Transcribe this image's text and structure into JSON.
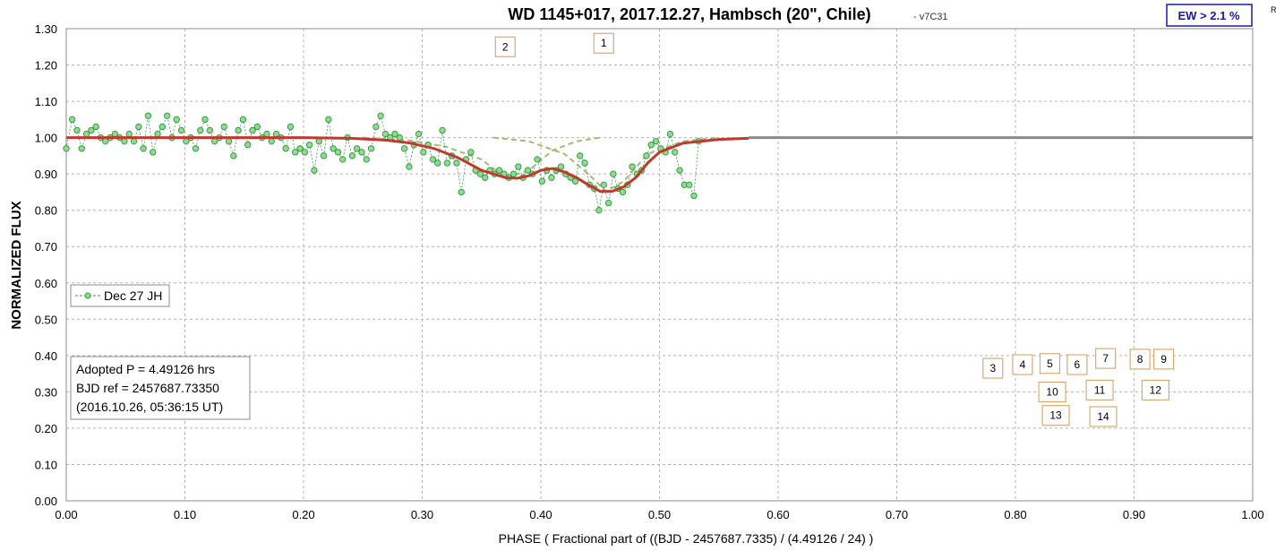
{
  "chart_data": {
    "type": "line",
    "title": "WD 1145+017, 2017.12.27, Hambsch (20\", Chile)",
    "subtitle": "- v7C31",
    "corner_label": "R",
    "ew_label": "EW >  2.1 %",
    "xlabel": "PHASE  ( Fractional part of ((BJD - 2457687.7335)  / (4.49126  / 24) )",
    "ylabel": "NORMALIZED  FLUX",
    "xlim": [
      0,
      1
    ],
    "ylim": [
      0,
      1.3
    ],
    "xticks": [
      "0.00",
      "0.10",
      "0.20",
      "0.30",
      "0.40",
      "0.50",
      "0.60",
      "0.70",
      "0.80",
      "0.90",
      "1.00"
    ],
    "yticks": [
      "0.00",
      "0.10",
      "0.20",
      "0.30",
      "0.40",
      "0.50",
      "0.60",
      "0.70",
      "0.80",
      "0.90",
      "1.00",
      "1.10",
      "1.20",
      "1.30"
    ],
    "grid": true,
    "legend": {
      "position": "left-middle",
      "entries": [
        "Dec 27 JH"
      ]
    },
    "info_box": [
      "Adopted P = 4.49126 hrs",
      "BJD ref = 2457687.73350",
      "(2016.10.26, 05:36:15 UT)"
    ],
    "colors": {
      "data_line": "#3a9a4a",
      "data_fill": "#8fdc8f",
      "model": "#c0392b",
      "component": "#a8b878",
      "marker_border": "#d49a5a",
      "ew_border": "#1a1aa8",
      "grid": "#b4b4b4"
    },
    "series": [
      {
        "name": "Dec 27 JH",
        "x": [
          0.0,
          0.005,
          0.009,
          0.013,
          0.017,
          0.021,
          0.025,
          0.029,
          0.033,
          0.037,
          0.041,
          0.045,
          0.049,
          0.053,
          0.057,
          0.061,
          0.065,
          0.069,
          0.073,
          0.077,
          0.081,
          0.085,
          0.089,
          0.093,
          0.097,
          0.101,
          0.105,
          0.109,
          0.113,
          0.117,
          0.121,
          0.125,
          0.129,
          0.133,
          0.137,
          0.141,
          0.145,
          0.149,
          0.153,
          0.157,
          0.161,
          0.165,
          0.169,
          0.173,
          0.177,
          0.181,
          0.185,
          0.189,
          0.193,
          0.197,
          0.201,
          0.205,
          0.209,
          0.213,
          0.217,
          0.221,
          0.225,
          0.229,
          0.233,
          0.237,
          0.241,
          0.245,
          0.249,
          0.253,
          0.257,
          0.261,
          0.265,
          0.269,
          0.273,
          0.277,
          0.281,
          0.285,
          0.289,
          0.293,
          0.297,
          0.301,
          0.305,
          0.309,
          0.313,
          0.317,
          0.321,
          0.325,
          0.329,
          0.333,
          0.337,
          0.341,
          0.345,
          0.349,
          0.353,
          0.357,
          0.361,
          0.365,
          0.369,
          0.373,
          0.377,
          0.381,
          0.385,
          0.389,
          0.393,
          0.397,
          0.401,
          0.405,
          0.409,
          0.413,
          0.417,
          0.421,
          0.425,
          0.429,
          0.433,
          0.437,
          0.441,
          0.445,
          0.449,
          0.453,
          0.457,
          0.461,
          0.465,
          0.469,
          0.473,
          0.477,
          0.481,
          0.485,
          0.489,
          0.493,
          0.497,
          0.501,
          0.505,
          0.509,
          0.513,
          0.517,
          0.521,
          0.525,
          0.529,
          0.533
        ],
        "values": [
          0.97,
          1.05,
          1.02,
          0.97,
          1.01,
          1.02,
          1.03,
          1.0,
          0.99,
          1.0,
          1.01,
          1.0,
          0.99,
          1.01,
          0.99,
          1.03,
          0.97,
          1.06,
          0.96,
          1.01,
          1.03,
          1.06,
          1.0,
          1.05,
          1.02,
          0.99,
          1.0,
          0.97,
          1.02,
          1.05,
          1.02,
          0.99,
          1.0,
          1.03,
          0.99,
          0.95,
          1.02,
          1.05,
          0.98,
          1.02,
          1.03,
          1.0,
          1.01,
          0.99,
          1.01,
          1.0,
          0.97,
          1.03,
          0.96,
          0.97,
          0.96,
          0.98,
          0.91,
          0.99,
          0.95,
          1.05,
          0.97,
          0.96,
          0.94,
          1.0,
          0.95,
          0.97,
          0.96,
          0.94,
          0.97,
          1.03,
          1.06,
          1.01,
          1.0,
          1.01,
          1.0,
          0.97,
          0.92,
          0.98,
          1.01,
          0.96,
          0.98,
          0.94,
          0.93,
          1.02,
          0.93,
          0.95,
          0.93,
          0.85,
          0.94,
          0.96,
          0.91,
          0.9,
          0.89,
          0.91,
          0.9,
          0.91,
          0.9,
          0.89,
          0.9,
          0.92,
          0.89,
          0.91,
          0.9,
          0.94,
          0.88,
          0.91,
          0.89,
          0.91,
          0.92,
          0.9,
          0.89,
          0.88,
          0.95,
          0.93,
          0.87,
          0.86,
          0.8,
          0.87,
          0.82,
          0.9,
          0.86,
          0.85,
          0.87,
          0.92,
          0.9,
          0.91,
          0.95,
          0.98,
          0.99,
          0.97,
          0.96,
          1.01,
          0.96,
          0.91,
          0.87,
          0.87,
          0.84,
          0.99
        ]
      }
    ],
    "model_curve": {
      "x": [
        0.0,
        0.2,
        0.24,
        0.27,
        0.29,
        0.31,
        0.33,
        0.35,
        0.37,
        0.38,
        0.39,
        0.4,
        0.41,
        0.42,
        0.43,
        0.44,
        0.45,
        0.46,
        0.47,
        0.48,
        0.49,
        0.5,
        0.52,
        0.55,
        0.575
      ],
      "values": [
        1.0,
        1.0,
        0.998,
        0.993,
        0.985,
        0.97,
        0.945,
        0.91,
        0.89,
        0.888,
        0.895,
        0.91,
        0.915,
        0.905,
        0.89,
        0.87,
        0.852,
        0.852,
        0.865,
        0.89,
        0.93,
        0.96,
        0.985,
        0.995,
        0.998
      ]
    },
    "component_curves": [
      {
        "x": [
          0.25,
          0.29,
          0.32,
          0.35,
          0.37,
          0.39,
          0.41,
          0.43,
          0.45
        ],
        "values": [
          1.0,
          0.992,
          0.975,
          0.94,
          0.89,
          0.91,
          0.965,
          0.99,
          1.0
        ]
      },
      {
        "x": [
          0.36,
          0.39,
          0.42,
          0.44,
          0.455,
          0.47,
          0.49,
          0.52,
          0.55
        ],
        "values": [
          1.0,
          0.99,
          0.955,
          0.9,
          0.852,
          0.88,
          0.955,
          0.99,
          1.0
        ]
      }
    ],
    "markers": [
      {
        "label": "2",
        "x": 0.37,
        "y": 1.25
      },
      {
        "label": "1",
        "x": 0.453,
        "y": 1.26
      },
      {
        "label": "3",
        "x": 0.781,
        "y": 0.365
      },
      {
        "label": "4",
        "x": 0.806,
        "y": 0.375
      },
      {
        "label": "5",
        "x": 0.829,
        "y": 0.378
      },
      {
        "label": "6",
        "x": 0.852,
        "y": 0.375
      },
      {
        "label": "7",
        "x": 0.876,
        "y": 0.392
      },
      {
        "label": "8",
        "x": 0.905,
        "y": 0.39
      },
      {
        "label": "9",
        "x": 0.925,
        "y": 0.39
      },
      {
        "label": "10",
        "x": 0.831,
        "y": 0.3
      },
      {
        "label": "11",
        "x": 0.871,
        "y": 0.305
      },
      {
        "label": "12",
        "x": 0.918,
        "y": 0.305
      },
      {
        "label": "13",
        "x": 0.834,
        "y": 0.235
      },
      {
        "label": "14",
        "x": 0.874,
        "y": 0.232
      }
    ]
  }
}
